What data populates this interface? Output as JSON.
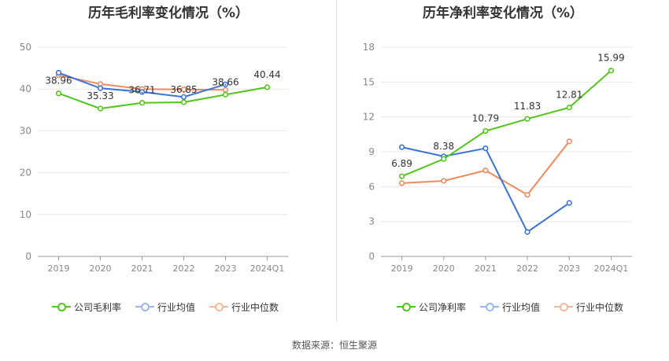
{
  "chart_data": [
    {
      "type": "line",
      "title": "历年毛利率变化情况（%）",
      "categories": [
        "2019",
        "2020",
        "2021",
        "2022",
        "2023",
        "2024Q1"
      ],
      "ylim": [
        0,
        50
      ],
      "yticks": [
        "0",
        "10",
        "20",
        "30",
        "40",
        "50"
      ],
      "series": [
        {
          "name": "公司毛利率",
          "color": "#52c41a",
          "values": [
            38.96,
            35.33,
            36.71,
            36.85,
            38.66,
            40.44
          ],
          "labels": [
            "38.96",
            "35.33",
            "36.71",
            "36.85",
            "38.66",
            "40.44"
          ]
        },
        {
          "name": "行业均值",
          "color": "#3b73d8",
          "values": [
            43.9,
            40.2,
            39.3,
            38.1,
            41.1,
            null
          ],
          "labels": []
        },
        {
          "name": "行业中位数",
          "color": "#f08a5d",
          "values": [
            43.3,
            41.2,
            40.0,
            39.9,
            39.8,
            null
          ],
          "labels": []
        }
      ]
    },
    {
      "type": "line",
      "title": "历年净利率变化情况（%）",
      "categories": [
        "2019",
        "2020",
        "2021",
        "2022",
        "2023",
        "2024Q1"
      ],
      "ylim": [
        0,
        18
      ],
      "yticks": [
        "0",
        "3",
        "6",
        "9",
        "12",
        "15",
        "18"
      ],
      "series": [
        {
          "name": "公司净利率",
          "color": "#52c41a",
          "values": [
            6.89,
            8.38,
            10.79,
            11.83,
            12.81,
            15.99
          ],
          "labels": [
            "6.89",
            "8.38",
            "10.79",
            "11.83",
            "12.81",
            "15.99"
          ]
        },
        {
          "name": "行业均值",
          "color": "#3b73d8",
          "values": [
            9.4,
            8.6,
            9.3,
            2.1,
            4.6,
            null
          ],
          "labels": []
        },
        {
          "name": "行业中位数",
          "color": "#f08a5d",
          "values": [
            6.3,
            6.5,
            7.4,
            5.3,
            9.9,
            null
          ],
          "labels": []
        }
      ]
    }
  ],
  "source": "数据来源：恒生聚源"
}
